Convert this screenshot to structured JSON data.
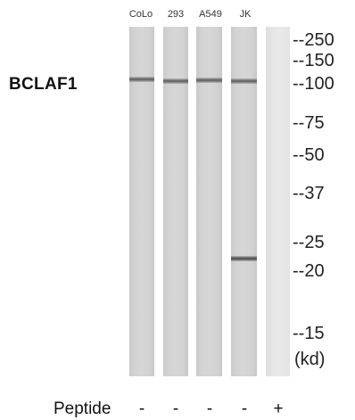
{
  "protein_label": "BCLAF1",
  "lanes": [
    {
      "label": "CoLo",
      "peptide": "-"
    },
    {
      "label": "293",
      "peptide": "-"
    },
    {
      "label": "A549",
      "peptide": "-"
    },
    {
      "label": "JK",
      "peptide": "-"
    },
    {
      "label": "",
      "peptide": "+"
    }
  ],
  "markers": [
    "--250",
    "--150",
    "--100",
    "--75",
    "--50",
    "--37",
    "--25",
    "--20",
    "--15"
  ],
  "units": "(kd)",
  "peptide_label": "Peptide"
}
